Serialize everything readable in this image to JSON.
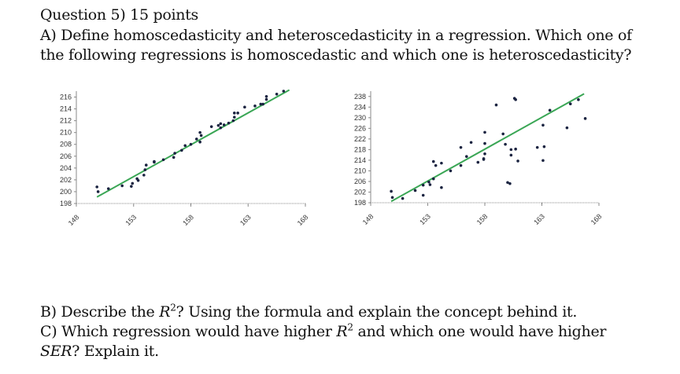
{
  "question": {
    "title": "Question 5) 15 points",
    "part_a_line1": "A) Define homoscedasticity and heteroscedasticity in a regression. Which one of",
    "part_a_line2": "the following regressions is homoscedastic and which one is heteroscedasticity?",
    "part_b_prefix": "B) Describe the ",
    "part_b_r": "R",
    "part_b_sup": "2",
    "part_b_suffix": "? Using the formula and explain the concept behind it.",
    "part_c_prefix": "C) Which regression would have higher ",
    "part_c_r": "R",
    "part_c_sup": "2",
    "part_c_suffix": " and which one would have higher",
    "part_c_ser": "SER",
    "part_c_end": "? Explain it."
  },
  "colors": {
    "trend_line": "#3aa655",
    "points": "#1a2340",
    "axis": "#888888"
  },
  "chart_data": [
    {
      "type": "scatter",
      "title": "",
      "description": "Homoscedastic scatter with linear fit",
      "xlabel": "",
      "ylabel": "",
      "xlim": [
        148,
        168
      ],
      "ylim": [
        198,
        217
      ],
      "x_ticks": [
        "148",
        "153",
        "158",
        "163",
        "168"
      ],
      "y_ticks": [
        "198",
        "200",
        "202",
        "204",
        "206",
        "208",
        "210",
        "212",
        "214",
        "216"
      ],
      "trend_line": {
        "x": [
          149.8,
          166.6
        ],
        "y": [
          199.1,
          217.2
        ]
      },
      "points": [
        [
          149.8,
          200.8
        ],
        [
          149.9,
          200.0
        ],
        [
          150.8,
          200.5
        ],
        [
          152.0,
          201.0
        ],
        [
          152.8,
          200.9
        ],
        [
          152.9,
          201.4
        ],
        [
          153.3,
          202.2
        ],
        [
          153.4,
          201.9
        ],
        [
          153.9,
          202.8
        ],
        [
          154.0,
          203.7
        ],
        [
          154.1,
          204.5
        ],
        [
          154.8,
          205.0
        ],
        [
          154.8,
          205.1
        ],
        [
          155.6,
          205.4
        ],
        [
          156.5,
          205.8
        ],
        [
          156.6,
          206.5
        ],
        [
          157.2,
          207.0
        ],
        [
          157.5,
          207.8
        ],
        [
          158.0,
          208.0
        ],
        [
          158.5,
          208.9
        ],
        [
          158.8,
          208.4
        ],
        [
          158.8,
          210.0
        ],
        [
          158.9,
          209.5
        ],
        [
          159.8,
          211.0
        ],
        [
          160.4,
          211.2
        ],
        [
          160.6,
          210.8
        ],
        [
          160.6,
          211.5
        ],
        [
          160.9,
          211.3
        ],
        [
          161.3,
          211.6
        ],
        [
          161.7,
          212.0
        ],
        [
          161.8,
          212.6
        ],
        [
          161.8,
          213.3
        ],
        [
          162.1,
          213.3
        ],
        [
          162.7,
          214.3
        ],
        [
          163.6,
          214.5
        ],
        [
          164.1,
          214.8
        ],
        [
          164.3,
          214.8
        ],
        [
          164.6,
          216.1
        ],
        [
          164.6,
          215.6
        ],
        [
          165.5,
          216.5
        ],
        [
          166.1,
          217.0
        ]
      ]
    },
    {
      "type": "scatter",
      "title": "",
      "description": "Heteroscedastic scatter with linear fit",
      "xlabel": "",
      "ylabel": "",
      "xlim": [
        148,
        168
      ],
      "ylim": [
        198,
        240
      ],
      "x_ticks": [
        "148",
        "153",
        "158",
        "163",
        "168"
      ],
      "y_ticks": [
        "198",
        "202",
        "206",
        "210",
        "214",
        "218",
        "222",
        "226",
        "230",
        "234",
        "238"
      ],
      "trend_line": {
        "x": [
          149.8,
          166.7
        ],
        "y": [
          198.5,
          239.0
        ]
      },
      "points": [
        [
          149.8,
          202.3
        ],
        [
          149.9,
          200.0
        ],
        [
          150.8,
          199.6
        ],
        [
          151.9,
          202.6
        ],
        [
          152.6,
          204.6
        ],
        [
          152.6,
          200.8
        ],
        [
          153.1,
          205.8
        ],
        [
          153.2,
          204.8
        ],
        [
          153.5,
          207.0
        ],
        [
          153.5,
          213.5
        ],
        [
          153.7,
          212.0
        ],
        [
          154.2,
          212.9
        ],
        [
          154.2,
          203.7
        ],
        [
          155.0,
          210.0
        ],
        [
          155.9,
          218.8
        ],
        [
          155.9,
          212.0
        ],
        [
          156.4,
          215.4
        ],
        [
          156.8,
          220.7
        ],
        [
          157.4,
          213.2
        ],
        [
          157.9,
          214.3
        ],
        [
          157.9,
          214.6
        ],
        [
          158.0,
          224.5
        ],
        [
          158.0,
          220.3
        ],
        [
          158.0,
          216.4
        ],
        [
          159.0,
          234.8
        ],
        [
          159.6,
          223.9
        ],
        [
          159.8,
          220.0
        ],
        [
          160.0,
          205.6
        ],
        [
          160.2,
          205.2
        ],
        [
          160.3,
          215.9
        ],
        [
          160.3,
          218.0
        ],
        [
          160.6,
          237.3
        ],
        [
          160.7,
          236.8
        ],
        [
          160.7,
          218.2
        ],
        [
          160.9,
          213.7
        ],
        [
          162.6,
          218.8
        ],
        [
          163.1,
          213.9
        ],
        [
          163.1,
          227.2
        ],
        [
          163.2,
          219.1
        ],
        [
          163.7,
          232.8
        ],
        [
          165.2,
          226.2
        ],
        [
          165.5,
          235.2
        ],
        [
          166.2,
          236.8
        ],
        [
          166.8,
          229.7
        ]
      ]
    }
  ]
}
